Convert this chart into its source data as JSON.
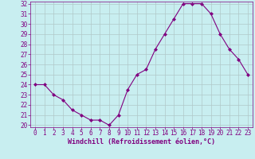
{
  "x": [
    0,
    1,
    2,
    3,
    4,
    5,
    6,
    7,
    8,
    9,
    10,
    11,
    12,
    13,
    14,
    15,
    16,
    17,
    18,
    19,
    20,
    21,
    22,
    23
  ],
  "y": [
    24,
    24,
    23,
    22.5,
    21.5,
    21,
    20.5,
    20.5,
    20,
    21,
    23.5,
    25,
    25.5,
    27.5,
    29,
    30.5,
    32,
    32,
    32,
    31,
    29,
    27.5,
    26.5,
    25
  ],
  "line_color": "#800080",
  "marker": "D",
  "marker_size": 2,
  "bg_color": "#c8eef0",
  "grid_color": "#b0c8c8",
  "xlabel": "Windchill (Refroidissement éolien,°C)",
  "xlabel_color": "#800080",
  "tick_color": "#800080",
  "ylim": [
    20,
    32
  ],
  "yticks": [
    20,
    21,
    22,
    23,
    24,
    25,
    26,
    27,
    28,
    29,
    30,
    31,
    32
  ],
  "xlim": [
    -0.5,
    23.5
  ],
  "tick_fontsize": 5.5,
  "xlabel_fontsize": 6.0,
  "spine_color": "#800080"
}
